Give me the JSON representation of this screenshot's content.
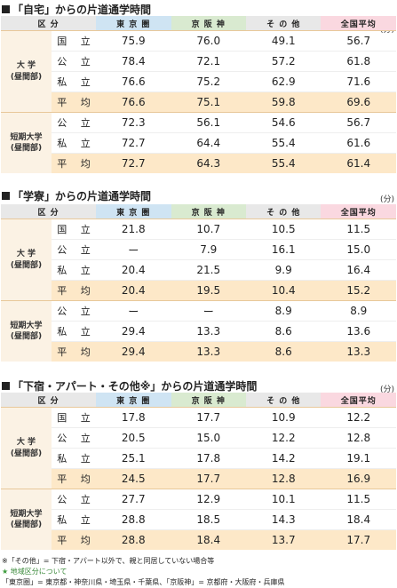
{
  "header": {
    "kubun": "区 分",
    "tokyo": "東 京 圏",
    "keihan": "京 阪 神",
    "sonota": "そ の 他",
    "zenkoku": "全国平均"
  },
  "unit": "(分)",
  "row_labels": {
    "kokuritsu": "国 立",
    "kouritsu": "公 立",
    "shiritsu": "私 立",
    "heikin": "平 均"
  },
  "groups": {
    "daigaku_1": "大 学",
    "daigaku_2": "(昼間部)",
    "tanki_1": "短期大学",
    "tanki_2": "(昼間部)"
  },
  "sections": [
    {
      "title": "「自宅」からの片道通学時間",
      "daigaku": [
        [
          "75.9",
          "76.0",
          "49.1",
          "56.7"
        ],
        [
          "78.4",
          "72.1",
          "57.2",
          "61.8"
        ],
        [
          "76.6",
          "75.2",
          "62.9",
          "71.6"
        ],
        [
          "76.6",
          "75.1",
          "59.8",
          "69.6"
        ]
      ],
      "tanki": [
        [
          "72.3",
          "56.1",
          "54.6",
          "56.7"
        ],
        [
          "72.7",
          "64.4",
          "55.4",
          "61.6"
        ],
        [
          "72.7",
          "64.3",
          "55.4",
          "61.4"
        ]
      ]
    },
    {
      "title": "「学寮」からの片道通学時間",
      "daigaku": [
        [
          "21.8",
          "10.7",
          "10.5",
          "11.5"
        ],
        [
          "ー",
          "7.9",
          "16.1",
          "15.0"
        ],
        [
          "20.4",
          "21.5",
          "9.9",
          "16.4"
        ],
        [
          "20.4",
          "19.5",
          "10.4",
          "15.2"
        ]
      ],
      "tanki": [
        [
          "ー",
          "ー",
          "8.9",
          "8.9"
        ],
        [
          "29.4",
          "13.3",
          "8.6",
          "13.6"
        ],
        [
          "29.4",
          "13.3",
          "8.6",
          "13.3"
        ]
      ]
    },
    {
      "title": "「下宿・アパート・その他※」からの片道通学時間",
      "daigaku": [
        [
          "17.8",
          "17.7",
          "10.9",
          "12.2"
        ],
        [
          "20.5",
          "15.0",
          "12.2",
          "12.8"
        ],
        [
          "25.1",
          "17.8",
          "14.2",
          "19.1"
        ],
        [
          "24.5",
          "17.7",
          "12.8",
          "16.9"
        ]
      ],
      "tanki": [
        [
          "27.7",
          "12.9",
          "10.1",
          "11.5"
        ],
        [
          "28.8",
          "18.5",
          "14.3",
          "18.4"
        ],
        [
          "28.8",
          "18.4",
          "13.7",
          "17.7"
        ]
      ]
    }
  ],
  "notes": {
    "note1": "※「その他」= 下宿・アパート以外で、親と同居していない場合等",
    "note2_star": "★",
    "note2": "地域区分について",
    "note3": "「東京圏」= 東京都・神奈川県・埼玉県・千葉県、「京阪神」= 京都府・大阪府・兵庫県"
  }
}
